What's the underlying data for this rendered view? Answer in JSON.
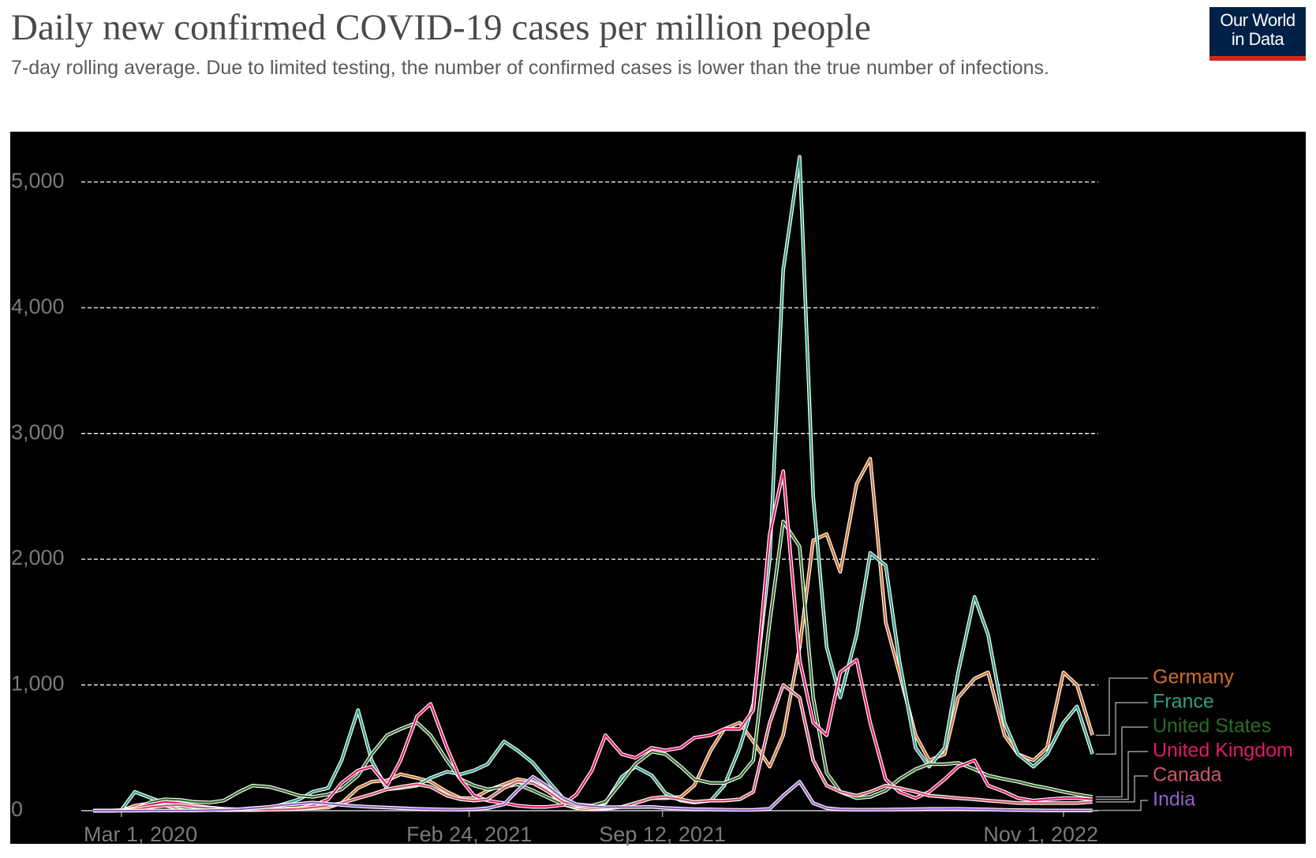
{
  "chart_data": {
    "type": "line",
    "title": "Daily new confirmed COVID-19 cases per million people",
    "subtitle": "7-day rolling average. Due to limited testing, the number of confirmed cases is lower than the true number of infections.",
    "logo": {
      "line1": "Our World",
      "line2": "in Data"
    },
    "x": [
      "2020-02-01",
      "2020-02-15",
      "2020-03-01",
      "2020-03-15",
      "2020-04-01",
      "2020-04-15",
      "2020-05-01",
      "2020-05-15",
      "2020-06-01",
      "2020-06-15",
      "2020-07-01",
      "2020-07-15",
      "2020-08-01",
      "2020-08-15",
      "2020-09-01",
      "2020-09-15",
      "2020-10-01",
      "2020-10-15",
      "2020-11-01",
      "2020-11-15",
      "2020-12-01",
      "2020-12-15",
      "2021-01-01",
      "2021-01-15",
      "2021-02-01",
      "2021-02-15",
      "2021-03-01",
      "2021-03-15",
      "2021-04-01",
      "2021-04-15",
      "2021-05-01",
      "2021-05-15",
      "2021-06-01",
      "2021-06-15",
      "2021-07-01",
      "2021-07-15",
      "2021-08-01",
      "2021-08-15",
      "2021-09-01",
      "2021-09-15",
      "2021-10-01",
      "2021-10-15",
      "2021-11-01",
      "2021-11-15",
      "2021-12-01",
      "2021-12-15",
      "2022-01-01",
      "2022-01-15",
      "2022-02-01",
      "2022-02-15",
      "2022-03-01",
      "2022-03-15",
      "2022-04-01",
      "2022-04-15",
      "2022-05-01",
      "2022-05-15",
      "2022-06-01",
      "2022-06-15",
      "2022-07-01",
      "2022-07-15",
      "2022-08-01",
      "2022-08-15",
      "2022-09-01",
      "2022-09-15",
      "2022-10-01",
      "2022-10-15",
      "2022-11-01",
      "2022-11-15",
      "2022-12-01"
    ],
    "series": [
      {
        "name": "Germany",
        "color": "#d0702c",
        "values": [
          0,
          0,
          2,
          40,
          60,
          40,
          15,
          8,
          5,
          4,
          5,
          5,
          8,
          12,
          15,
          20,
          25,
          60,
          180,
          230,
          240,
          290,
          260,
          230,
          150,
          100,
          100,
          160,
          210,
          250,
          230,
          170,
          50,
          20,
          10,
          15,
          30,
          60,
          100,
          100,
          110,
          200,
          480,
          650,
          700,
          550,
          350,
          600,
          1300,
          2150,
          2200,
          1900,
          2600,
          2800,
          1500,
          1100,
          600,
          400,
          450,
          900,
          1050,
          1100,
          600,
          450,
          400,
          500,
          1100,
          1000,
          600
        ]
      },
      {
        "name": "France",
        "color": "#2f9e86",
        "values": [
          0,
          0,
          5,
          150,
          100,
          60,
          30,
          10,
          8,
          6,
          8,
          10,
          20,
          50,
          90,
          150,
          180,
          400,
          800,
          400,
          170,
          180,
          200,
          260,
          310,
          290,
          320,
          370,
          550,
          480,
          380,
          250,
          100,
          50,
          40,
          60,
          270,
          350,
          280,
          140,
          80,
          65,
          80,
          200,
          500,
          850,
          2000,
          4300,
          5200,
          2500,
          1300,
          900,
          1400,
          2050,
          1950,
          1200,
          500,
          350,
          500,
          1100,
          1700,
          1400,
          700,
          450,
          350,
          450,
          700,
          830,
          450
        ]
      },
      {
        "name": "United States",
        "color": "#2e6b25",
        "values": [
          0,
          0,
          1,
          15,
          70,
          90,
          85,
          70,
          65,
          80,
          150,
          200,
          190,
          160,
          120,
          110,
          130,
          170,
          280,
          450,
          600,
          650,
          700,
          600,
          400,
          250,
          200,
          170,
          190,
          210,
          160,
          110,
          50,
          30,
          40,
          70,
          230,
          370,
          470,
          450,
          350,
          250,
          220,
          220,
          270,
          400,
          1500,
          2300,
          2100,
          900,
          300,
          150,
          100,
          110,
          160,
          250,
          330,
          370,
          370,
          380,
          330,
          280,
          250,
          230,
          200,
          180,
          150,
          130,
          110
        ]
      },
      {
        "name": "United Kingdom",
        "color": "#e01a6c",
        "values": [
          0,
          0,
          1,
          20,
          50,
          70,
          60,
          40,
          25,
          15,
          10,
          8,
          10,
          15,
          20,
          40,
          90,
          220,
          320,
          350,
          200,
          400,
          750,
          850,
          500,
          250,
          120,
          80,
          60,
          40,
          30,
          30,
          45,
          130,
          320,
          600,
          450,
          420,
          500,
          480,
          500,
          580,
          600,
          650,
          650,
          800,
          2200,
          2700,
          1200,
          700,
          600,
          1100,
          1200,
          700,
          250,
          150,
          100,
          150,
          250,
          350,
          400,
          200,
          150,
          100,
          80,
          90,
          100,
          100,
          90
        ]
      },
      {
        "name": "Canada",
        "color": "#d0566d",
        "values": [
          0,
          0,
          1,
          10,
          30,
          40,
          45,
          30,
          20,
          12,
          8,
          10,
          8,
          10,
          15,
          25,
          40,
          60,
          100,
          130,
          170,
          190,
          210,
          190,
          120,
          90,
          80,
          90,
          180,
          230,
          220,
          160,
          70,
          40,
          20,
          20,
          30,
          60,
          100,
          110,
          90,
          70,
          80,
          80,
          90,
          150,
          700,
          1000,
          900,
          400,
          200,
          150,
          120,
          150,
          200,
          180,
          150,
          120,
          110,
          100,
          90,
          80,
          70,
          60,
          60,
          60,
          60,
          60,
          70
        ]
      },
      {
        "name": "India",
        "color": "#9461c8",
        "values": [
          0,
          0,
          0,
          0,
          1,
          1,
          1,
          2,
          4,
          7,
          12,
          20,
          30,
          45,
          55,
          65,
          55,
          45,
          35,
          30,
          25,
          20,
          15,
          12,
          9,
          8,
          11,
          20,
          50,
          160,
          270,
          200,
          100,
          50,
          35,
          28,
          28,
          28,
          30,
          22,
          16,
          12,
          10,
          8,
          6,
          6,
          15,
          120,
          230,
          60,
          20,
          10,
          8,
          8,
          9,
          10,
          12,
          14,
          14,
          15,
          12,
          10,
          6,
          5,
          3,
          2,
          2,
          2,
          2
        ]
      }
    ],
    "xlim": [
      "2020-01-22",
      "2022-12-07"
    ],
    "xticks": [
      {
        "value": "2020-03-01",
        "label": "Mar 1, 2020"
      },
      {
        "value": "2021-02-24",
        "label": "Feb 24, 2021"
      },
      {
        "value": "2021-09-12",
        "label": "Sep 12, 2021"
      },
      {
        "value": "2022-11-01",
        "label": "Nov 1, 2022"
      }
    ],
    "ylim": [
      0,
      5400
    ],
    "yticks": [
      0,
      {
        "value": 1000,
        "label": "1,000"
      },
      {
        "value": 2000,
        "label": "2,000"
      },
      {
        "value": 3000,
        "label": "3,000"
      },
      {
        "value": 4000,
        "label": "4,000"
      },
      {
        "value": 5000,
        "label": "5,000"
      }
    ],
    "grid": true
  }
}
